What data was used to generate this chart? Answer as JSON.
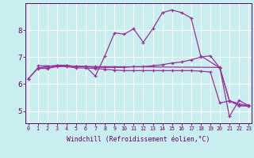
{
  "xlabel": "Windchill (Refroidissement éolien,°C)",
  "background_color": "#c8eef0",
  "line_color": "#993399",
  "grid_color": "#ffffff",
  "x_ticks": [
    0,
    1,
    2,
    3,
    4,
    5,
    6,
    7,
    8,
    9,
    10,
    11,
    12,
    13,
    14,
    15,
    16,
    17,
    18,
    19,
    20,
    21,
    22,
    23
  ],
  "y_ticks": [
    5,
    6,
    7,
    8
  ],
  "xlim": [
    -0.3,
    23.3
  ],
  "ylim": [
    4.55,
    9.0
  ],
  "lines": [
    {
      "x": [
        0,
        1,
        2,
        3,
        4,
        5,
        6,
        7,
        8,
        9,
        10,
        11,
        12,
        13,
        14,
        15,
        16,
        17,
        18,
        20,
        21,
        22,
        23
      ],
      "y": [
        6.2,
        6.6,
        6.65,
        6.7,
        6.7,
        6.65,
        6.65,
        6.3,
        7.05,
        7.9,
        7.85,
        8.05,
        7.55,
        8.05,
        8.65,
        8.75,
        8.65,
        8.45,
        7.05,
        6.6,
        4.8,
        5.4,
        5.2
      ]
    },
    {
      "x": [
        0,
        1,
        2,
        3,
        4,
        5,
        6,
        7,
        8,
        9,
        10,
        11,
        12,
        13,
        14,
        15,
        16,
        17,
        18,
        19,
        20,
        21,
        22,
        23
      ],
      "y": [
        6.2,
        6.58,
        6.58,
        6.65,
        6.65,
        6.6,
        6.6,
        6.58,
        6.55,
        6.52,
        6.5,
        6.5,
        6.5,
        6.5,
        6.5,
        6.5,
        6.5,
        6.5,
        6.48,
        6.45,
        5.3,
        5.38,
        5.2,
        5.18
      ]
    },
    {
      "x": [
        1,
        2,
        3,
        4,
        5,
        6,
        7,
        8,
        9,
        10,
        11,
        12,
        13,
        14,
        15,
        16,
        17,
        18,
        19,
        20,
        21,
        22,
        23
      ],
      "y": [
        6.6,
        6.6,
        6.68,
        6.68,
        6.65,
        6.65,
        6.62,
        6.62,
        6.62,
        6.62,
        6.65,
        6.65,
        6.68,
        6.72,
        6.78,
        6.82,
        6.9,
        7.0,
        7.05,
        6.6,
        5.38,
        5.22,
        5.22
      ]
    },
    {
      "x": [
        1,
        7,
        20,
        21,
        23
      ],
      "y": [
        6.68,
        6.65,
        6.62,
        5.38,
        5.18
      ]
    }
  ]
}
